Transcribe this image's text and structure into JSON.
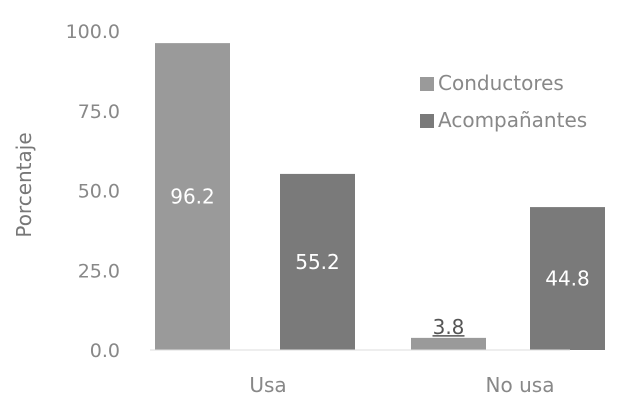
{
  "chart_data": {
    "type": "bar",
    "ylabel": "Porcentaje",
    "xlabel": "",
    "categories": [
      "Usa",
      "No usa"
    ],
    "ylim": [
      0,
      100
    ],
    "yticks": [
      0,
      25,
      50,
      75,
      100
    ],
    "ytick_labels": [
      "0.0",
      "25.0",
      "50.0",
      "75.0",
      "100.0"
    ],
    "series": [
      {
        "name": "Conductores",
        "values": [
          96.2,
          3.8
        ],
        "value_labels": [
          "96.2",
          "3.8"
        ],
        "color": "#9a9a9a"
      },
      {
        "name": "Acompañantes",
        "values": [
          55.2,
          44.8
        ],
        "value_labels": [
          "55.2",
          "44.8"
        ],
        "color": "#7a7a7a"
      }
    ],
    "legend_position": "right",
    "grid": false
  }
}
